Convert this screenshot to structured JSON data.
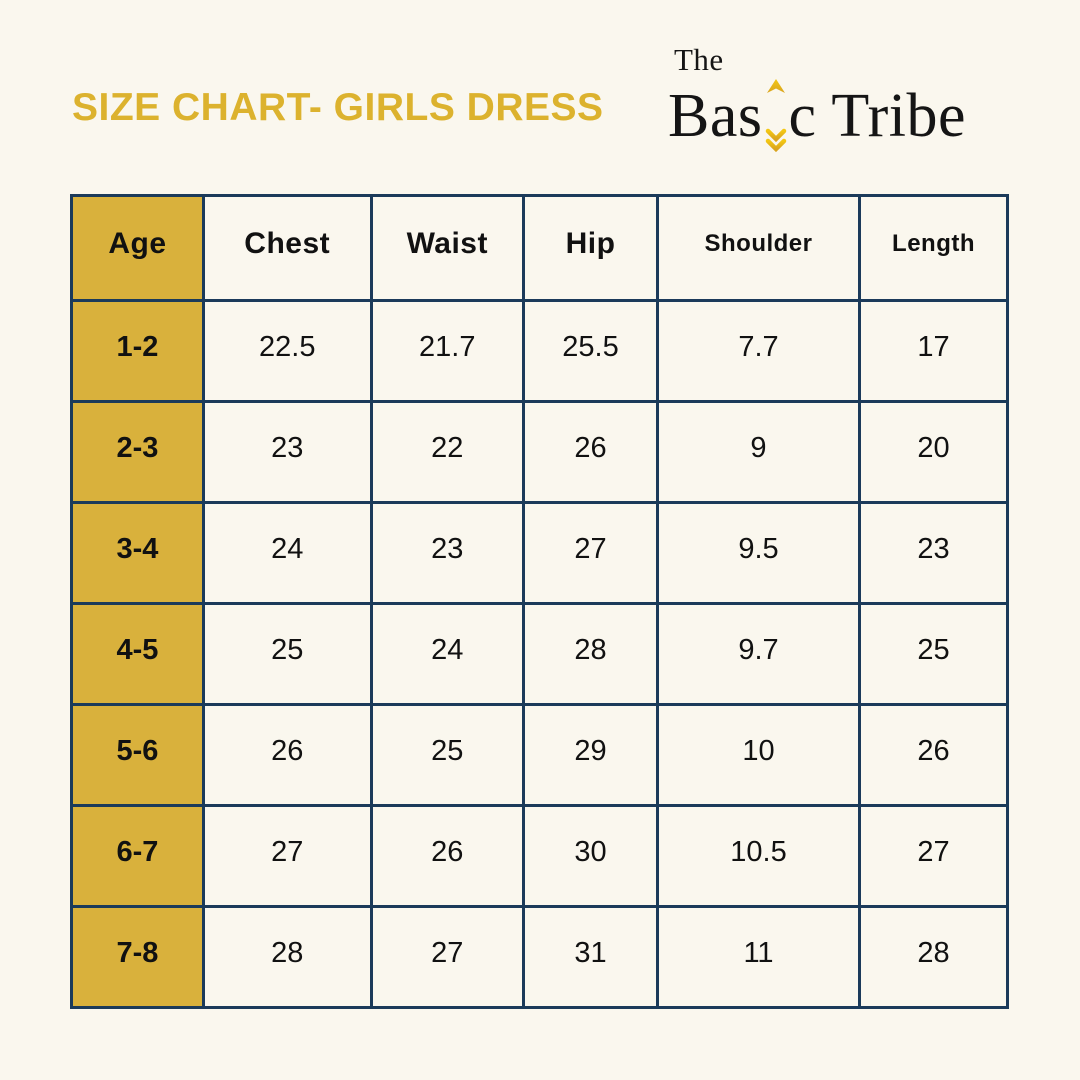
{
  "page": {
    "background_color": "#faf7ee"
  },
  "header": {
    "title": "SIZE CHART- GIRLS DRESS",
    "title_color": "#dcb22e",
    "logo": {
      "top_word": "The",
      "main_pre": "Bas",
      "main_post": "c Tribe",
      "arrow_icon": "up-arrow-icon",
      "arrow_color": "#ecbe2a",
      "text_color": "#151515"
    }
  },
  "chart_data": {
    "type": "table",
    "title": "SIZE CHART- GIRLS DRESS",
    "columns": [
      "Age",
      "Chest",
      "Waist",
      "Hip",
      "Shoulder",
      "Length"
    ],
    "rows": [
      [
        "1-2",
        "22.5",
        "21.7",
        "25.5",
        "7.7",
        "17"
      ],
      [
        "2-3",
        "23",
        "22",
        "26",
        "9",
        "20"
      ],
      [
        "3-4",
        "24",
        "23",
        "27",
        "9.5",
        "23"
      ],
      [
        "4-5",
        "25",
        "24",
        "28",
        "9.7",
        "25"
      ],
      [
        "5-6",
        "26",
        "25",
        "29",
        "10",
        "26"
      ],
      [
        "6-7",
        "27",
        "26",
        "30",
        "10.5",
        "27"
      ],
      [
        "7-8",
        "28",
        "27",
        "31",
        "11",
        "28"
      ]
    ],
    "header_highlight_column": "Age",
    "accent_color": "#d9b13c",
    "border_color": "#1b3a5a",
    "grid": true,
    "legend": false
  }
}
